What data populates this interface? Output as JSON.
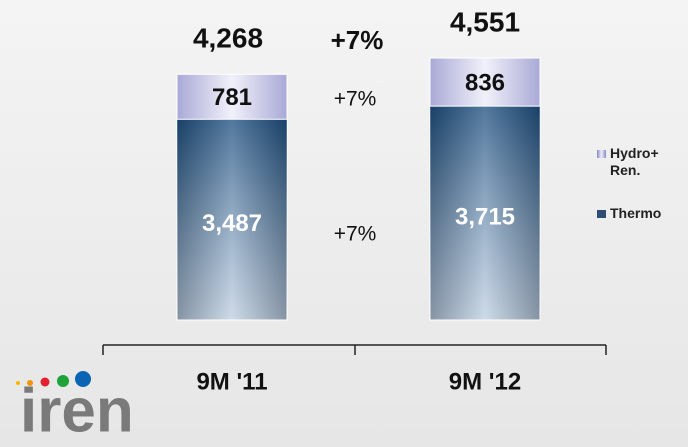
{
  "chart_data": {
    "type": "stacked_bar",
    "categories": [
      "9M '11",
      "9M '12"
    ],
    "series": [
      {
        "name": "Thermo",
        "color": "#1f4e79",
        "values": [
          3487,
          3715
        ],
        "value_labels": [
          "3,487",
          "3,715"
        ]
      },
      {
        "name": "Hydro+ Ren.",
        "color": "#ccccee",
        "values": [
          781,
          836
        ],
        "value_labels": [
          "781",
          "836"
        ]
      }
    ],
    "totals": [
      4268,
      4551
    ],
    "total_labels": [
      "4,268",
      "4,551"
    ],
    "growth_labels": [
      "+7%",
      "+7%",
      "+7%"
    ],
    "logo": "iren"
  }
}
